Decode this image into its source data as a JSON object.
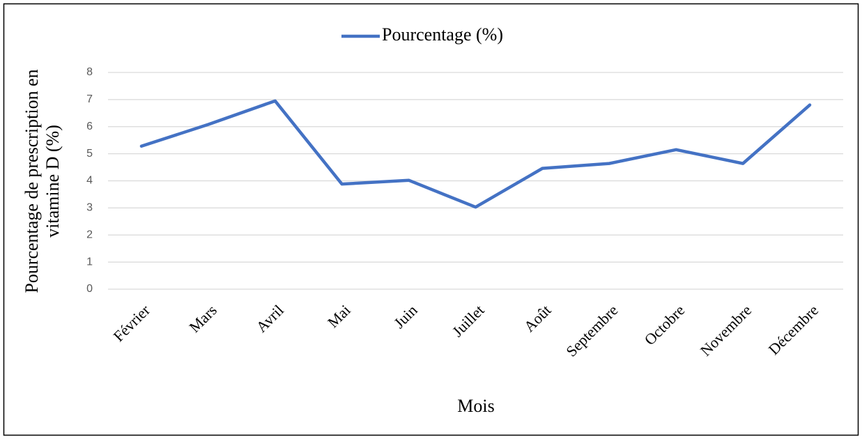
{
  "chart_data": {
    "type": "line",
    "legend_label": "Pourcentage (%)",
    "ylabel": [
      "Pourcentage de prescription en",
      "vitamine D (%)"
    ],
    "xlabel": "Mois",
    "categories": [
      "Février",
      "Mars",
      "Avril",
      "Mai",
      "Juin",
      "Juillet",
      "Août",
      "Septembre",
      "Octobre",
      "Novembre",
      "Décembre"
    ],
    "series": [
      {
        "name": "Pourcentage (%)",
        "color": "#4472c4",
        "values": [
          5.28,
          6.08,
          6.95,
          3.88,
          4.02,
          3.03,
          4.46,
          4.64,
          5.15,
          4.64,
          6.8
        ]
      }
    ],
    "ylim": [
      0,
      8
    ],
    "yticks": [
      0,
      1,
      2,
      3,
      4,
      5,
      6,
      7,
      8
    ],
    "grid": true,
    "legend": "top"
  }
}
